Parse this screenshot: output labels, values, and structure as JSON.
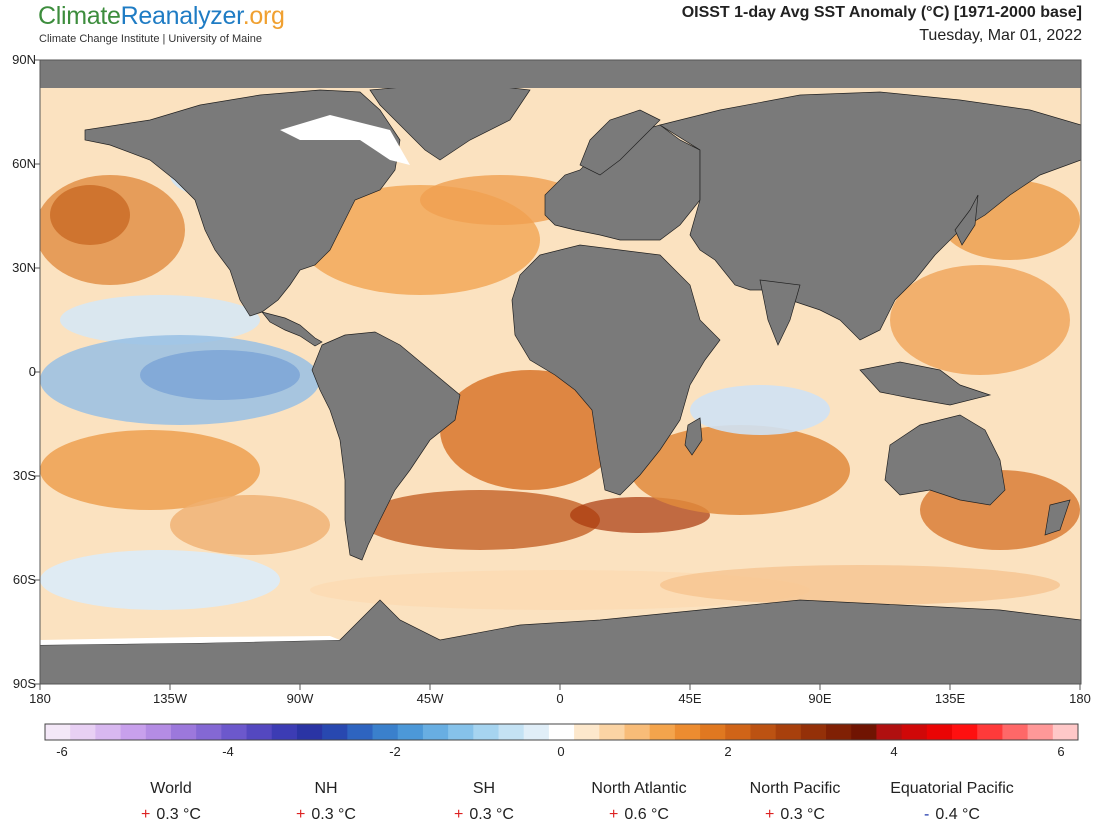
{
  "header": {
    "logo_part1": "Climate",
    "logo_part2": "Reanalyzer",
    "logo_part3": ".org",
    "subtitle": "Climate Change Institute | University of Maine",
    "title": "OISST 1-day Avg SST Anomaly (°C) [1971-2000 base]",
    "date": "Tuesday, Mar 01, 2022"
  },
  "map": {
    "lat_labels": [
      "90N",
      "60N",
      "30N",
      "0",
      "30S",
      "60S",
      "90S"
    ],
    "lon_labels": [
      "180",
      "135W",
      "90W",
      "45W",
      "0",
      "45E",
      "90E",
      "135E",
      "180"
    ],
    "colors": {
      "land": "#7a7a7a",
      "ice": "#ffffff",
      "frame": "#555555"
    }
  },
  "colorbar": {
    "tick_labels": [
      "-6",
      "-4",
      "-2",
      "0",
      "2",
      "4",
      "6"
    ],
    "range": [
      -6,
      6
    ],
    "colors": [
      "#f4e8f8",
      "#e8d0f4",
      "#d8b8f0",
      "#c8a0ec",
      "#b48ce4",
      "#9c78dc",
      "#8468d4",
      "#6c58cc",
      "#5448c0",
      "#3c3cb4",
      "#2a34a4",
      "#2848b0",
      "#2e64c0",
      "#3a80cc",
      "#4c98d8",
      "#68aee2",
      "#86c2ea",
      "#a6d4f0",
      "#c4e2f4",
      "#e0eef8",
      "#ffffff",
      "#fde8cc",
      "#fbd4a4",
      "#f8bc78",
      "#f4a44c",
      "#ec8c30",
      "#e07820",
      "#d06418",
      "#bc5212",
      "#a8400c",
      "#943008",
      "#802004",
      "#701402",
      "#b01010",
      "#d00808",
      "#ea0404",
      "#ff1010",
      "#ff3a3a",
      "#ff6868",
      "#ff9898",
      "#ffc8c8"
    ]
  },
  "stats": [
    {
      "label": "World",
      "sign": "+",
      "value": "0.3 °C"
    },
    {
      "label": "NH",
      "sign": "+",
      "value": "0.3 °C"
    },
    {
      "label": "SH",
      "sign": "+",
      "value": "0.3 °C"
    },
    {
      "label": "North Atlantic",
      "sign": "+",
      "value": "0.6 °C"
    },
    {
      "label": "North Pacific",
      "sign": "+",
      "value": "0.3 °C"
    },
    {
      "label": "Equatorial Pacific",
      "sign": "-",
      "value": "0.4 °C"
    }
  ]
}
